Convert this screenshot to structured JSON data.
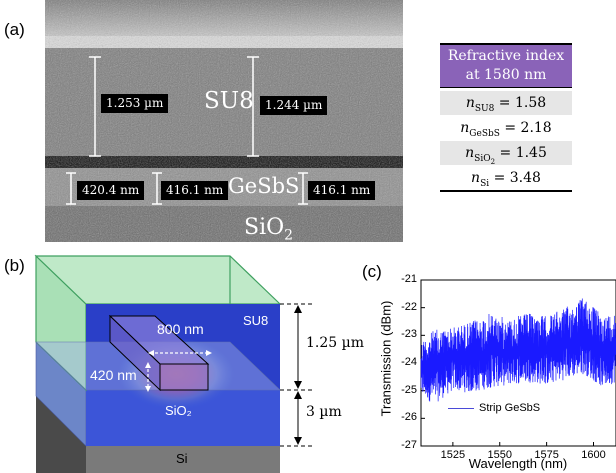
{
  "panel_a": {
    "label": "(a)",
    "thickness_left": "1.253 µm",
    "thickness_right": "1.244 µm",
    "layer_su8": "SU8",
    "gesbs_left": "420.4 nm",
    "gesbs_mid": "416.1 nm",
    "gesbs_right": "416.1 nm",
    "layer_gesbs": "GeSbS",
    "layer_sio2": "SiO",
    "layer_sio2_sub": "2"
  },
  "refractive_table": {
    "header_line1": "Refractive index",
    "header_line2": "at 1580 nm",
    "header_color": "#8a63b8",
    "rows": [
      {
        "symbol": "n",
        "sub": "SU8",
        "value": " = 1.58"
      },
      {
        "symbol": "n",
        "sub": "GeSbS",
        "value": " = 2.18"
      },
      {
        "symbol": "n",
        "sub": "SiO",
        "sub2": "2",
        "value": " = 1.45"
      },
      {
        "symbol": "n",
        "sub": "Si",
        "value": " = 3.48"
      }
    ]
  },
  "panel_b": {
    "label": "(b)",
    "width_label": "800 nm",
    "height_label": "420 nm",
    "su8_label": "SU8",
    "sio2_label": "SiO₂",
    "si_label": "Si",
    "dim_top": "1.25 µm",
    "dim_bottom": "3 µm"
  },
  "panel_c": {
    "label": "(c)",
    "chart_data": {
      "type": "line",
      "xlabel": "Wavelength (nm)",
      "ylabel": "Transmission (dBm)",
      "xlim": [
        1508,
        1612
      ],
      "ylim": [
        -27,
        -21
      ],
      "xticks": [
        1525,
        1550,
        1575,
        1600
      ],
      "yticks": [
        -21,
        -22,
        -23,
        -24,
        -25,
        -26,
        -27
      ],
      "legend_placement": "bottom-left",
      "series": [
        {
          "name": "Strip GeSbS",
          "color": "#1a1aff",
          "x": [
            1508,
            1515,
            1525,
            1535,
            1545,
            1555,
            1565,
            1575,
            1585,
            1595,
            1605,
            1612
          ],
          "y": [
            -24.2,
            -24.1,
            -23.9,
            -23.8,
            -23.6,
            -23.5,
            -23.4,
            -23.5,
            -23.3,
            -23.0,
            -23.6,
            -23.4
          ],
          "upper": [
            -23.2,
            -22.8,
            -22.7,
            -22.5,
            -22.2,
            -22.4,
            -22.2,
            -22.3,
            -22.0,
            -21.6,
            -22.3,
            -22.1
          ],
          "lower": [
            -25.2,
            -25.5,
            -25.0,
            -25.1,
            -24.9,
            -24.8,
            -24.7,
            -24.8,
            -24.6,
            -24.4,
            -24.9,
            -24.7
          ]
        }
      ]
    }
  }
}
